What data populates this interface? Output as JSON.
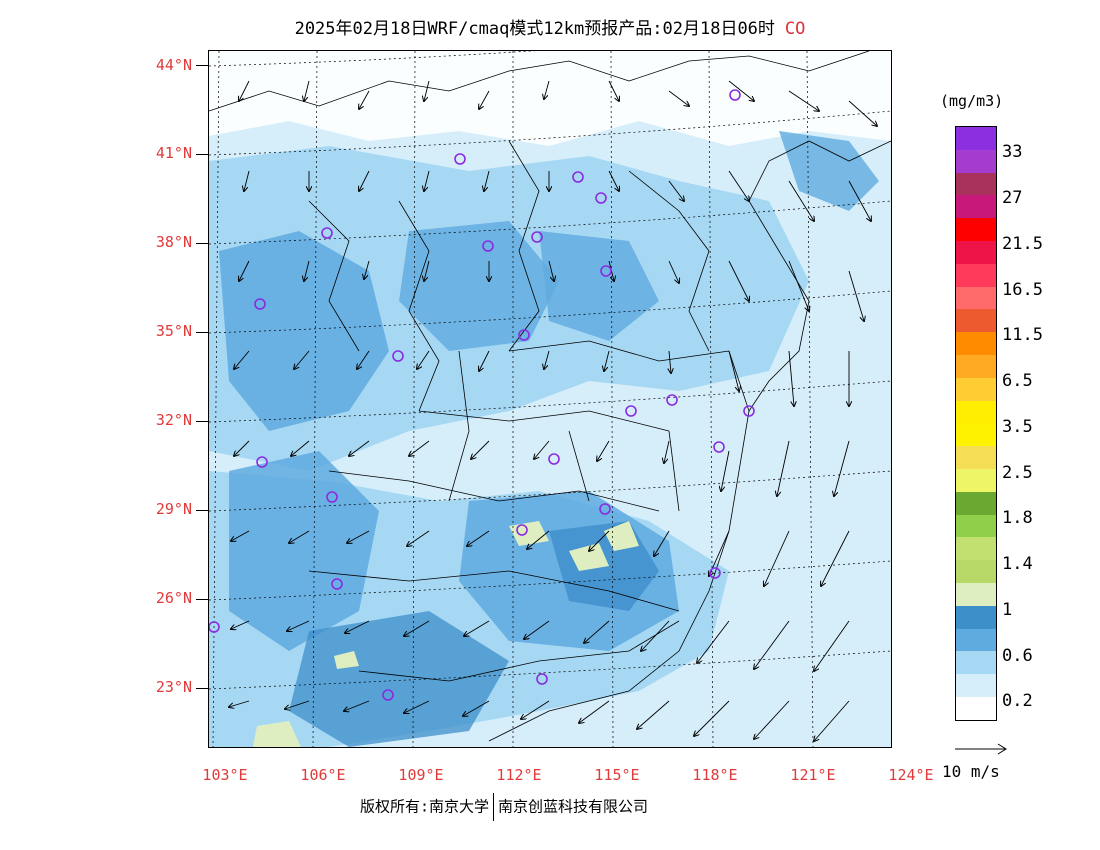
{
  "title": {
    "text": "2025年02月18日WRF/cmaq模式12km预报产品:02月18日06时",
    "species": "CO"
  },
  "axes": {
    "lat_labels": [
      "44°N",
      "41°N",
      "38°N",
      "35°N",
      "32°N",
      "29°N",
      "26°N",
      "23°N"
    ],
    "lon_labels": [
      "103°E",
      "106°E",
      "109°E",
      "112°E",
      "115°E",
      "118°E",
      "121°E",
      "124°E"
    ]
  },
  "colorbar": {
    "unit": "(mg/m3)",
    "colors": [
      "#8b2fe0",
      "#a43cd0",
      "#a8325c",
      "#c8187a",
      "#ff0000",
      "#ee1448",
      "#ff3a5a",
      "#ff6a6a",
      "#ee5a30",
      "#ff8c00",
      "#ffaa22",
      "#ffcc33",
      "#ffee00",
      "#fff200",
      "#f5dd55",
      "#eef566",
      "#6aa832",
      "#8fcf4a",
      "#c2e070",
      "#b8d868",
      "#dfeec0",
      "#3d8fca",
      "#5faadf",
      "#a6d8f4",
      "#d6eefa",
      "#ffffff"
    ],
    "labels": [
      "33",
      "27",
      "21.5",
      "16.5",
      "11.5",
      "6.5",
      "3.5",
      "2.5",
      "1.8",
      "1.4",
      "1",
      "0.6",
      "0.2"
    ]
  },
  "wind_reference": {
    "label": "10 m/s"
  },
  "copyright": {
    "left": "版权所有:南京大学",
    "right": "南京创蓝科技有限公司"
  },
  "colors": {
    "accent_red": "#e03a3a",
    "marker_purple": "#8a2be2",
    "conc_low": "#d6eefa",
    "conc_mid": "#a6d8f4",
    "conc_high": "#5faadf",
    "conc_higher": "#3d8fca",
    "conc_1": "#dfeec0"
  }
}
